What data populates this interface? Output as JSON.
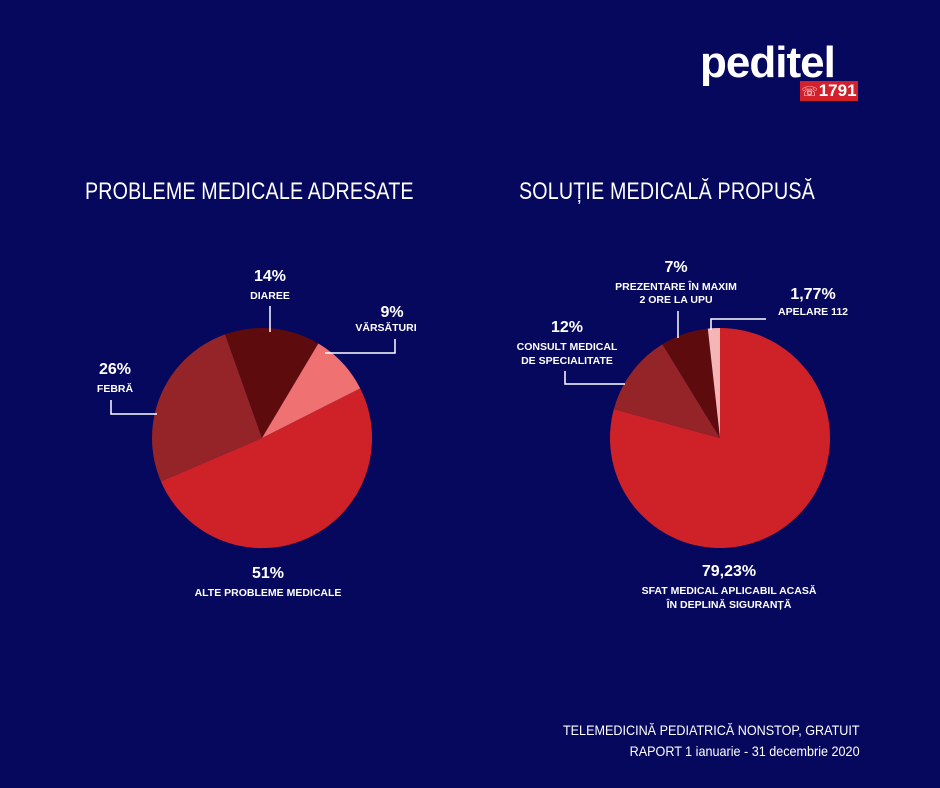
{
  "logo": {
    "word_pre": "pedi",
    "word_accent": "tel",
    "phone_icon": "phone-icon",
    "number": "1791"
  },
  "colors": {
    "background": "#06085e",
    "red": "#cf2128",
    "dark_red": "#952429",
    "darkest_red": "#5e0b0e",
    "pink": "#f07171",
    "light_pink": "#f6b5b5",
    "white": "#ffffff"
  },
  "chart_data": [
    {
      "type": "pie",
      "title": "PROBLEME MEDICALE  ADRESATE",
      "series": [
        {
          "slices": [
            {
              "label": "ALTE PROBLEME MEDICALE",
              "value": 51,
              "value_label": "51%",
              "color": "#cf2128"
            },
            {
              "label": "FEBRĂ",
              "value": 26,
              "value_label": "26%",
              "color": "#952429"
            },
            {
              "label": "DIAREE",
              "value": 14,
              "value_label": "14%",
              "color": "#5e0b0e"
            },
            {
              "label": "VĂRSĂTURI",
              "value": 9,
              "value_label": "9%",
              "color": "#f07171"
            }
          ]
        }
      ]
    },
    {
      "type": "pie",
      "title": "SOLUȚIE MEDICALĂ PROPUSĂ",
      "series": [
        {
          "slices": [
            {
              "label": "SFAT MEDICAL APLICABIL ACASĂ ÎN DEPLINĂ SIGURANȚĂ",
              "value": 79.23,
              "value_label": "79,23%",
              "color": "#cf2128"
            },
            {
              "label": "CONSULT MEDICAL DE SPECIALITATE",
              "value": 12,
              "value_label": "12%",
              "color": "#952429"
            },
            {
              "label": "PREZENTARE ÎN MAXIM 2 ORE LA UPU",
              "value": 7,
              "value_label": "7%",
              "color": "#5e0b0e"
            },
            {
              "label": "APELARE 112",
              "value": 1.77,
              "value_label": "1,77%",
              "color": "#f6b5b5"
            }
          ]
        }
      ]
    }
  ],
  "footer": {
    "line1": "TELEMEDICINĂ PEDIATRICĂ NONSTOP, GRATUIT",
    "line2": "RAPORT 1 ianuarie - 31 decembrie 2020"
  }
}
